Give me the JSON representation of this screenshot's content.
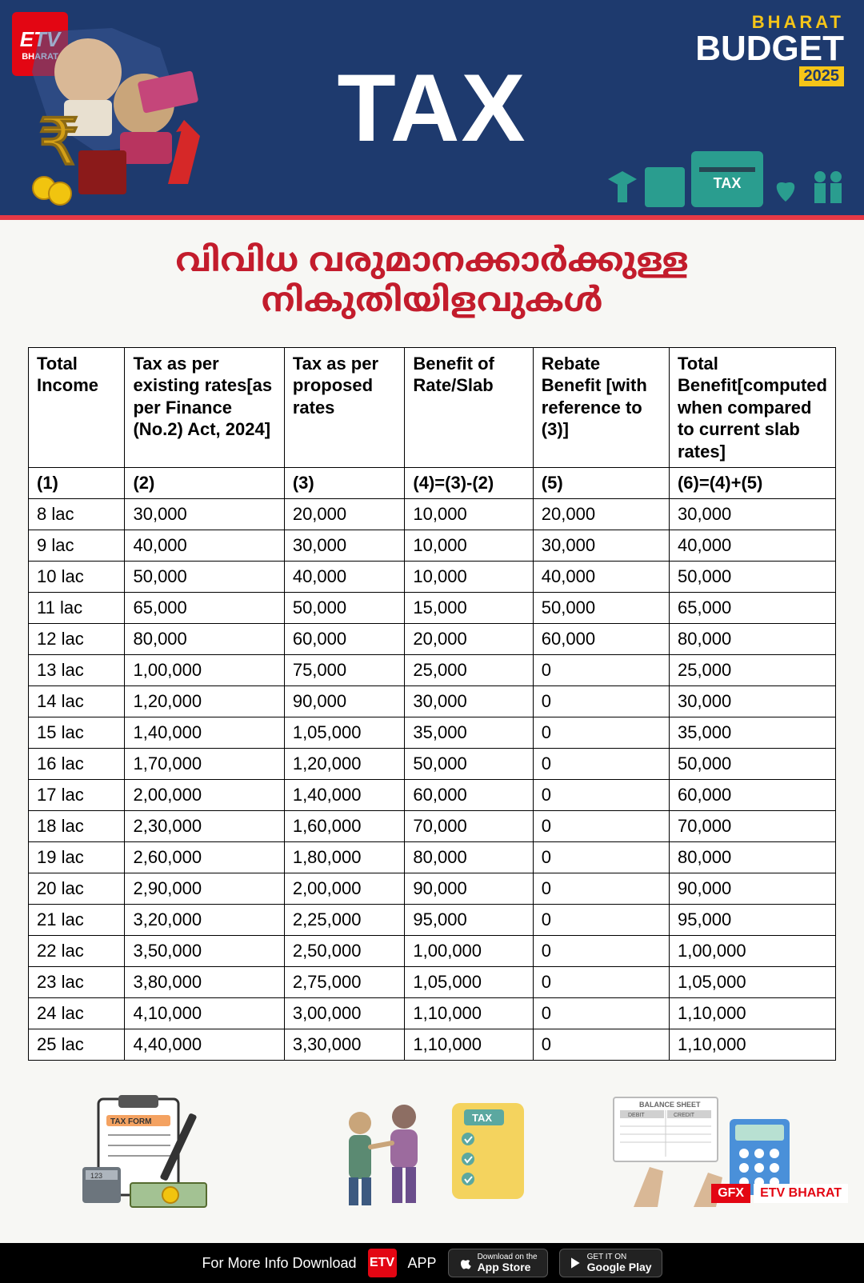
{
  "header": {
    "logo_top": "ETV",
    "logo_bottom": "BHARAT",
    "title": "TAX",
    "badge_bharat": "BHARAT",
    "badge_budget": "BUDGET",
    "badge_year": "2025",
    "tax_icon_label": "TAX",
    "colors": {
      "banner_bg": "#1e3a6e",
      "accent_red": "#e30613",
      "divider_red": "#e63946",
      "teal": "#2a9d8f",
      "yellow": "#f5c518"
    }
  },
  "subtitle": "വിവിധ വരുമാനക്കാർക്കുള്ള നികുതിയിളവുകൾ",
  "table": {
    "headers": [
      "Total Income",
      "Tax as per existing rates[as per Finance (No.2) Act, 2024]",
      "Tax as per proposed rates",
      "Benefit of Rate/Slab",
      "Rebate Benefit [with reference to (3)]",
      "Total Benefit[computed when compared to current slab rates]"
    ],
    "ref_row": [
      "(1)",
      "(2)",
      "(3)",
      "(4)=(3)-(2)",
      "(5)",
      "(6)=(4)+(5)"
    ],
    "rows": [
      [
        "8 lac",
        "30,000",
        "20,000",
        "10,000",
        "20,000",
        "30,000"
      ],
      [
        "9 lac",
        "40,000",
        "30,000",
        "10,000",
        "30,000",
        "40,000"
      ],
      [
        "10 lac",
        "50,000",
        "40,000",
        "10,000",
        "40,000",
        "50,000"
      ],
      [
        "11 lac",
        "65,000",
        "50,000",
        "15,000",
        "50,000",
        "65,000"
      ],
      [
        "12 lac",
        "80,000",
        "60,000",
        "20,000",
        "60,000",
        "80,000"
      ],
      [
        "13 lac",
        "1,00,000",
        "75,000",
        "25,000",
        "0",
        "25,000"
      ],
      [
        "14 lac",
        "1,20,000",
        "90,000",
        "30,000",
        "0",
        "30,000"
      ],
      [
        "15 lac",
        "1,40,000",
        "1,05,000",
        "35,000",
        "0",
        "35,000"
      ],
      [
        "16 lac",
        "1,70,000",
        "1,20,000",
        "50,000",
        "0",
        "50,000"
      ],
      [
        "17 lac",
        "2,00,000",
        "1,40,000",
        "60,000",
        "0",
        "60,000"
      ],
      [
        "18 lac",
        "2,30,000",
        "1,60,000",
        "70,000",
        "0",
        "70,000"
      ],
      [
        "19 lac",
        "2,60,000",
        "1,80,000",
        "80,000",
        "0",
        "80,000"
      ],
      [
        "20 lac",
        "2,90,000",
        "2,00,000",
        "90,000",
        "0",
        "90,000"
      ],
      [
        "21 lac",
        "3,20,000",
        "2,25,000",
        "95,000",
        "0",
        "95,000"
      ],
      [
        "22 lac",
        "3,50,000",
        "2,50,000",
        "1,00,000",
        "0",
        "1,00,000"
      ],
      [
        "23 lac",
        "3,80,000",
        "2,75,000",
        "1,05,000",
        "0",
        "1,05,000"
      ],
      [
        "24 lac",
        "4,10,000",
        "3,00,000",
        "1,10,000",
        "0",
        "1,10,000"
      ],
      [
        "25 lac",
        "4,40,000",
        "3,30,000",
        "1,10,000",
        "0",
        "1,10,000"
      ]
    ],
    "col_widths_pct": [
      12,
      20,
      15,
      16,
      17,
      20
    ]
  },
  "bottom_illos": {
    "a_label": "TAX FORM",
    "b_label": "TAX",
    "c_label": "BALANCE SHEET",
    "c_sub1": "DEBIT",
    "c_sub2": "CREDIT"
  },
  "gfx": {
    "left": "GFX",
    "right": "ETV BHARAT"
  },
  "footer": {
    "text": "For More Info Download",
    "app_word": "APP",
    "app_logo": "ETV",
    "appstore_small": "Download on the",
    "appstore_big": "App Store",
    "play_small": "GET IT ON",
    "play_big": "Google Play"
  }
}
